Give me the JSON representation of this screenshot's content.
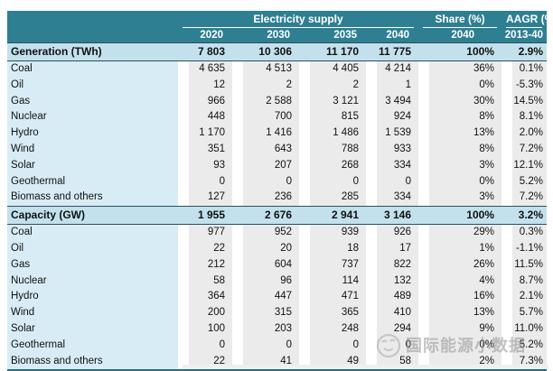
{
  "chart_data": {
    "type": "table",
    "title": "Electricity supply",
    "column_groups": [
      {
        "label": "Electricity supply",
        "columns": [
          "2020",
          "2030",
          "2035",
          "2040"
        ]
      },
      {
        "label": "Share (%)",
        "columns": [
          "2040"
        ]
      },
      {
        "label": "AAGR (%)",
        "columns": [
          "2013-40"
        ]
      }
    ],
    "sections": [
      {
        "title": "Generation (TWh)",
        "totals": [
          "7 803",
          "10 306",
          "11 170",
          "11 775",
          "100%",
          "2.9%"
        ],
        "rows": [
          {
            "label": "Coal",
            "values": [
              "4 635",
              "4 513",
              "4 405",
              "4 214",
              "36%",
              "0.1%"
            ]
          },
          {
            "label": "Oil",
            "values": [
              "12",
              "2",
              "2",
              "1",
              "0%",
              "-5.3%"
            ]
          },
          {
            "label": "Gas",
            "values": [
              "966",
              "2 588",
              "3 121",
              "3 494",
              "30%",
              "14.5%"
            ]
          },
          {
            "label": "Nuclear",
            "values": [
              "448",
              "700",
              "815",
              "924",
              "8%",
              "8.1%"
            ]
          },
          {
            "label": "Hydro",
            "values": [
              "1 170",
              "1 416",
              "1 486",
              "1 539",
              "13%",
              "2.0%"
            ]
          },
          {
            "label": "Wind",
            "values": [
              "351",
              "643",
              "788",
              "933",
              "8%",
              "7.2%"
            ]
          },
          {
            "label": "Solar",
            "values": [
              "93",
              "207",
              "268",
              "334",
              "3%",
              "12.1%"
            ]
          },
          {
            "label": "Geothermal",
            "values": [
              "0",
              "0",
              "0",
              "0",
              "0%",
              "5.2%"
            ]
          },
          {
            "label": "Biomass and others",
            "values": [
              "127",
              "236",
              "285",
              "334",
              "3%",
              "7.2%"
            ]
          }
        ]
      },
      {
        "title": "Capacity (GW)",
        "totals": [
          "1 955",
          "2 676",
          "2 941",
          "3 146",
          "100%",
          "3.2%"
        ],
        "rows": [
          {
            "label": "Coal",
            "values": [
              "977",
              "952",
              "939",
              "926",
              "29%",
              "0.3%"
            ]
          },
          {
            "label": "Oil",
            "values": [
              "22",
              "20",
              "18",
              "17",
              "1%",
              "-1.1%"
            ]
          },
          {
            "label": "Gas",
            "values": [
              "212",
              "604",
              "737",
              "822",
              "26%",
              "11.5%"
            ]
          },
          {
            "label": "Nuclear",
            "values": [
              "58",
              "96",
              "114",
              "132",
              "4%",
              "8.7%"
            ]
          },
          {
            "label": "Hydro",
            "values": [
              "364",
              "447",
              "471",
              "489",
              "16%",
              "2.1%"
            ]
          },
          {
            "label": "Wind",
            "values": [
              "200",
              "315",
              "365",
              "410",
              "13%",
              "5.7%"
            ]
          },
          {
            "label": "Solar",
            "values": [
              "100",
              "203",
              "248",
              "294",
              "9%",
              "11.0%"
            ]
          },
          {
            "label": "Geothermal",
            "values": [
              "0",
              "0",
              "0",
              "0",
              "0%",
              "5.2%"
            ]
          },
          {
            "label": "Biomass and others",
            "values": [
              "22",
              "41",
              "49",
              "58",
              "2%",
              "7.3%"
            ]
          }
        ]
      }
    ]
  },
  "watermark": {
    "text": "国际能源小数据",
    "icon": "smiley-face-logo"
  },
  "colors": {
    "header_teal": "#2f7f92",
    "section_blue": "#c3e1ed",
    "label_blue": "#d8ecf5",
    "band_gray": "#ebebeb",
    "dark_border": "#2b4f5c",
    "bottom_border": "#2c6c84",
    "watermark_gray": "#919191"
  }
}
